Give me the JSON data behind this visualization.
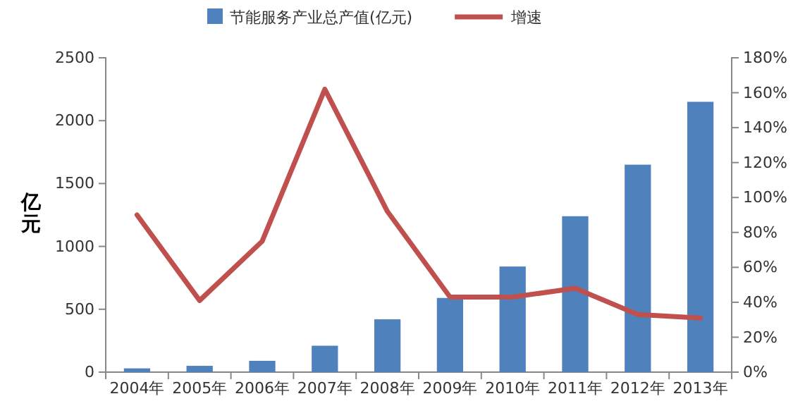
{
  "chart_data": {
    "type": "bar",
    "ylabel": "亿元",
    "categories": [
      "2004年",
      "2005年",
      "2006年",
      "2007年",
      "2008年",
      "2009年",
      "2010年",
      "2011年",
      "2012年",
      "2013年"
    ],
    "series": [
      {
        "name": "节能服务产业总产值(亿元)",
        "color": "#4f81bd",
        "values": [
          30,
          50,
          90,
          210,
          420,
          590,
          840,
          1240,
          1650,
          2150
        ]
      },
      {
        "name": "增速",
        "type": "line",
        "axis": "y2",
        "color": "#c0504d",
        "values": [
          90,
          41,
          75,
          162,
          92,
          43,
          43,
          48,
          33,
          31
        ]
      }
    ],
    "ylim": [
      0,
      2500
    ],
    "yticks": [
      0,
      500,
      1000,
      1500,
      2000,
      2500
    ],
    "y2lim": [
      0,
      180
    ],
    "y2ticks": [
      {
        "value": 0,
        "label": "0%"
      },
      {
        "value": 20,
        "label": "20%"
      },
      {
        "value": 40,
        "label": "40%"
      },
      {
        "value": 60,
        "label": "60%"
      },
      {
        "value": 80,
        "label": "80%"
      },
      {
        "value": 100,
        "label": "100%"
      },
      {
        "value": 120,
        "label": "120%"
      },
      {
        "value": 140,
        "label": "140%"
      },
      {
        "value": 160,
        "label": "160%"
      },
      {
        "value": 180,
        "label": "180%"
      }
    ],
    "grid": false,
    "legend": "top",
    "marker": "none",
    "line_style": "solid"
  }
}
